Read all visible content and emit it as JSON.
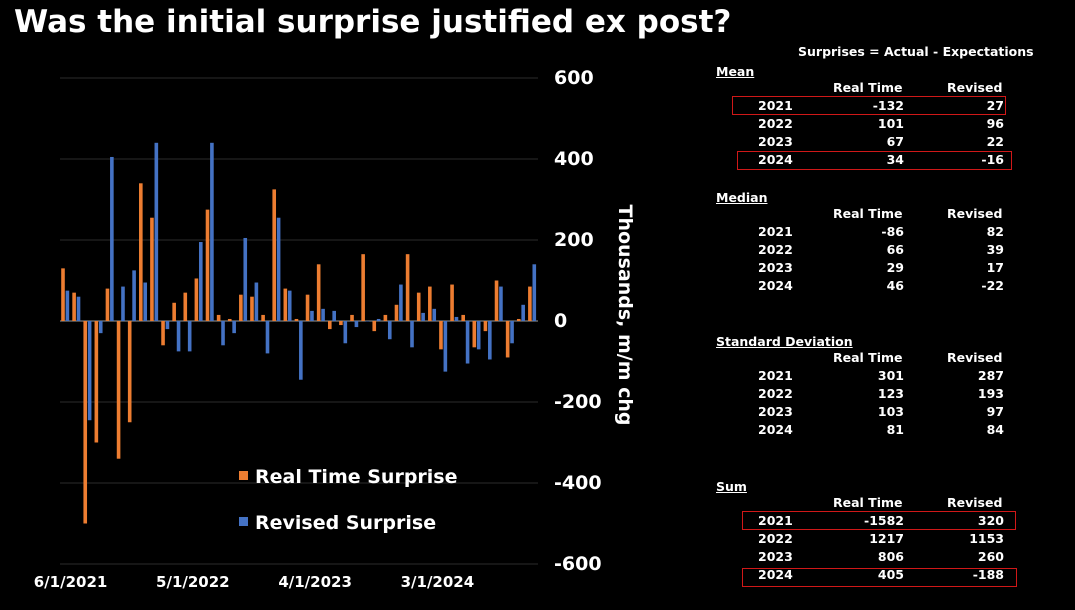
{
  "title": "Was the initial surprise justified ex post?",
  "colors": {
    "real_time": "#ED7D31",
    "revised": "#4472C4",
    "highlight": "#D01818"
  },
  "chart_data": {
    "type": "bar",
    "ylabel": "Thousands, m/m chg",
    "ylim": [
      -600,
      600
    ],
    "yticks": [
      "600",
      "400",
      "200",
      "0",
      "-200",
      "-400",
      "-600"
    ],
    "ytick_values": [
      600,
      400,
      200,
      0,
      -200,
      -400,
      -600
    ],
    "xtick_labels": [
      "6/1/2021",
      "5/1/2022",
      "4/1/2023",
      "3/1/2024"
    ],
    "xtick_indices": [
      0,
      11,
      22,
      33
    ],
    "grid": true,
    "legend_position": "lower-center",
    "series": [
      {
        "name": "Real Time Surprise",
        "color": "#ED7D31",
        "values": [
          130,
          70,
          -500,
          -300,
          80,
          -340,
          -250,
          340,
          255,
          -60,
          45,
          70,
          105,
          275,
          15,
          5,
          65,
          60,
          15,
          325,
          80,
          5,
          65,
          140,
          -20,
          -10,
          15,
          165,
          -25,
          15,
          40,
          165,
          70,
          85,
          -70,
          90,
          15,
          -65,
          -25,
          100,
          -90,
          5,
          85
        ]
      },
      {
        "name": "Revised Surprise",
        "color": "#4472C4",
        "values": [
          75,
          60,
          -245,
          -30,
          405,
          85,
          125,
          95,
          440,
          -20,
          -75,
          -75,
          195,
          440,
          -60,
          -30,
          205,
          95,
          -80,
          255,
          75,
          -145,
          25,
          30,
          25,
          -55,
          -15,
          0,
          5,
          -45,
          90,
          -65,
          20,
          30,
          -125,
          10,
          -105,
          -70,
          -95,
          85,
          -55,
          40,
          140
        ]
      }
    ]
  },
  "table": {
    "header": "Surprises = Actual - Expectations",
    "col_real": "Real Time",
    "col_revised": "Revised",
    "sections": [
      {
        "title": "Mean",
        "rows": [
          {
            "year": "2021",
            "real": "-132",
            "revised": "27"
          },
          {
            "year": "2022",
            "real": "101",
            "revised": "96"
          },
          {
            "year": "2023",
            "real": "67",
            "revised": "22"
          },
          {
            "year": "2024",
            "real": "34",
            "revised": "-16"
          }
        ]
      },
      {
        "title": "Median",
        "rows": [
          {
            "year": "2021",
            "real": "-86",
            "revised": "82"
          },
          {
            "year": "2022",
            "real": "66",
            "revised": "39"
          },
          {
            "year": "2023",
            "real": "29",
            "revised": "17"
          },
          {
            "year": "2024",
            "real": "46",
            "revised": "-22"
          }
        ]
      },
      {
        "title": "Standard Deviation",
        "rows": [
          {
            "year": "2021",
            "real": "301",
            "revised": "287"
          },
          {
            "year": "2022",
            "real": "123",
            "revised": "193"
          },
          {
            "year": "2023",
            "real": "103",
            "revised": "97"
          },
          {
            "year": "2024",
            "real": "81",
            "revised": "84"
          }
        ]
      },
      {
        "title": "Sum",
        "rows": [
          {
            "year": "2021",
            "real": "-1582",
            "revised": "320"
          },
          {
            "year": "2022",
            "real": "1217",
            "revised": "1153"
          },
          {
            "year": "2023",
            "real": "806",
            "revised": "260"
          },
          {
            "year": "2024",
            "real": "405",
            "revised": "-188"
          }
        ]
      }
    ]
  }
}
